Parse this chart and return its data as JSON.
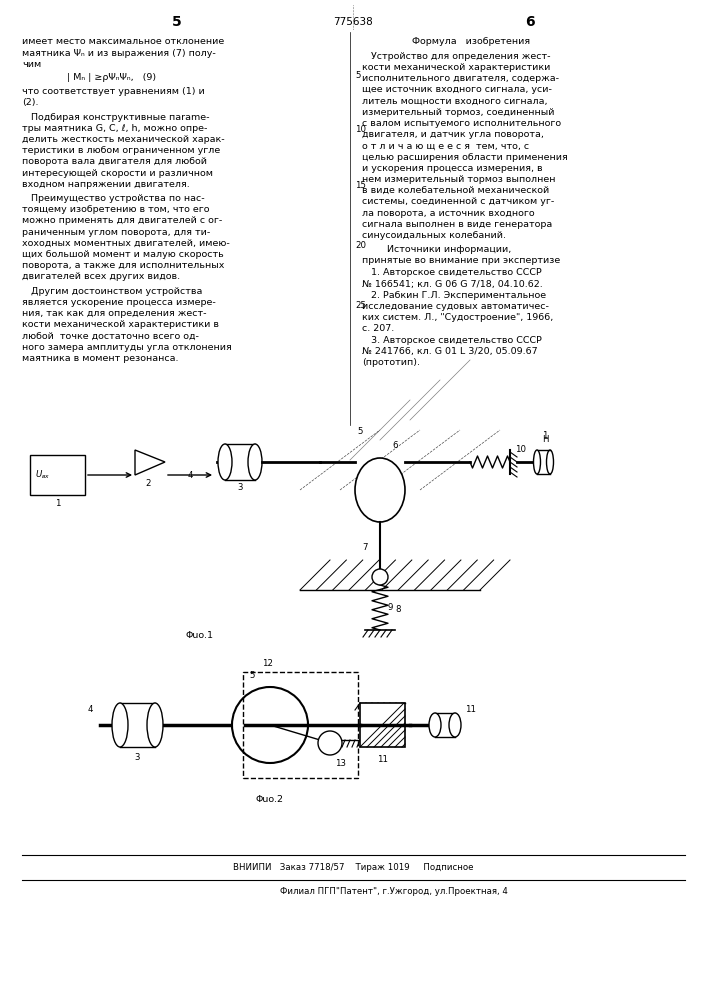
{
  "page_width": 7.07,
  "page_height": 10.0,
  "background_color": "#ffffff",
  "page_num_left": "5",
  "page_num_center": "775638",
  "page_num_right": "6",
  "left_col_text": [
    "имеет место максимальное отклонение",
    "маятника Ψₙ и из выражения (7) полу-",
    "чим"
  ],
  "formula_line": "| Mₙ | ≥ρΨₙΨₙ,   (9)",
  "left_col_text2": [
    "что соответствует уравнениям (1) и",
    "(2)."
  ],
  "left_col_para1": [
    "   Подбирая конструктивные паrame-",
    "тры маятника G, C, ℓ, h, можно опре-",
    "делить жесткость механической харак-",
    "теристики в любом ограниченном угле",
    "поворота вала двигателя для любой",
    "интересующей скорости и различном",
    "входном напряжении двигателя."
  ],
  "left_col_para2": [
    "   Преимущество устройства по нас-",
    "тоящему изобретению в том, что его",
    "можно применять для двигателей с ог-",
    "раниченным углом поворота, для ти-",
    "хоходных моментных двигателей, имею-",
    "щих большой момент и малую скорость",
    "поворота, а также для исполнительных",
    "двигателей всех других видов."
  ],
  "left_col_para3": [
    "   Другим достоинством устройства",
    "является ускорение процесса измере-",
    "ния, так как для определения жест-",
    "кости механической характеристики в",
    "любой  точке достаточно всего од-",
    "ного замера амплитуды угла отклонения",
    "маятника в момент резонанса."
  ],
  "right_col_header": "Формула   изобретения",
  "right_col_para1": [
    "   Устройство для определения жест-",
    "кости механической характеристики",
    "исполнительного двигателя, содержа-",
    "щее источник входного сигнала, уси-",
    "литель мощности входного сигнала,",
    "измерительный тормоз, соединенный",
    "с валом испытуемого исполнительного",
    "двигателя, и датчик угла поворота,",
    "о т л и ч а ю щ е е с я  тем, что, с",
    "целью расширения области применения",
    "и ускорения процесса измерения, в",
    "нем измерительный тормоз выполнен",
    "в виде колебательной механической",
    "системы, соединенной с датчиком уг-",
    "ла поворота, а источник входного",
    "сигнала выполнен в виде генератора",
    "синусоидальных колебаний."
  ],
  "right_col_para2_header": "Источники информации,",
  "right_col_para2_sub": "принятые во внимание при экспертизе",
  "right_col_refs": [
    "   1. Авторское свидетельство СССР",
    "№ 166541; кл. G 06 G 7/18, 04.10.62.",
    "   2. Рабкин Г.Л. Экспериментальное",
    "исследование судовых автоматичес-",
    "ких систем. Л., \"Судостроение\", 1966,",
    "с. 207.",
    "   3. Авторское свидетельство СССР",
    "№ 241766, кл. G 01 L 3/20, 05.09.67",
    "(прототип)."
  ],
  "fig1_label": "Φuo.1",
  "fig2_label": "Φuo.2",
  "footer_line1": "ВНИИПИ   Заказ 7718/57    Тираж 1019     Подписное",
  "footer_line2": "Филиал ПГП\"Патент\", г.Ужгород, ул.Проектная, 4"
}
